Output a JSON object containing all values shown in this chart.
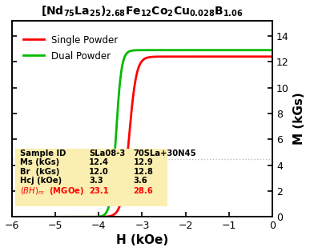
{
  "xlabel": "H (kOe)",
  "ylabel_left": "M (kGs)",
  "ylabel_right": "M (kGs)",
  "xlim": [
    -6.0,
    0.0
  ],
  "ylim": [
    0,
    15.2
  ],
  "yticks": [
    0,
    2,
    4,
    6,
    8,
    10,
    12,
    14
  ],
  "xticks": [
    -6,
    -5,
    -4,
    -3,
    -2,
    -1,
    0
  ],
  "bg_color": "#ffffff",
  "single_powder_color": "#ff0000",
  "dual_powder_color": "#00bb00",
  "table_bg_color": "#faeeb0",
  "hline_y": 4.5,
  "hline_color": "#bbbbbb",
  "single_Hcj": -3.3,
  "single_Ms": 12.4,
  "single_steep": 12.0,
  "dual_Hcj": -3.6,
  "dual_Ms": 12.9,
  "dual_steep": 16.0
}
